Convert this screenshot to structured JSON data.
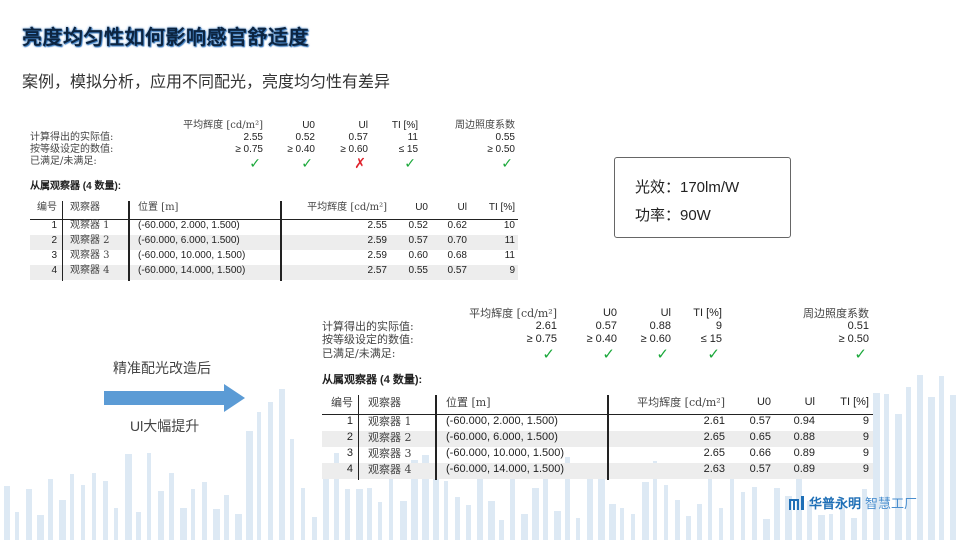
{
  "header": {
    "title": "亮度均匀性如何影响感官舒适度",
    "subtitle": "案例，模拟分析，应用不同配光，亮度均匀性有差异"
  },
  "colors": {
    "title": "#0c2440",
    "pass": "#1aa83a",
    "fail": "#e0202a",
    "arrow": "#5b9bd5",
    "background_bars": "#dde9f4"
  },
  "reports": [
    {
      "summary": {
        "headers": [
          "平均辉度 [cd/m²]",
          "U0",
          "Ul",
          "TI [%]",
          "周边照度系数"
        ],
        "rows": [
          {
            "label": "计算得出的实际值:",
            "values": [
              "2.55",
              "0.52",
              "0.57",
              "11",
              "0.55"
            ]
          },
          {
            "label": "按等级设定的数值:",
            "values": [
              "≥ 0.75",
              "≥ 0.40",
              "≥ 0.60",
              "≤ 15",
              "≥ 0.50"
            ]
          }
        ],
        "status_label": "已满足/未满足:",
        "status": [
          "pass",
          "pass",
          "fail",
          "pass",
          "pass"
        ]
      },
      "observers_title": "从属观察器 (4 数量):",
      "table": {
        "headers": [
          "编号",
          "观察器",
          "位置 [m]",
          "平均辉度 [cd/m²]",
          "U0",
          "Ul",
          "TI [%]"
        ],
        "rows": [
          [
            "1",
            "观察器 1",
            "(-60.000, 2.000, 1.500)",
            "2.55",
            "0.52",
            "0.62",
            "10"
          ],
          [
            "2",
            "观察器 2",
            "(-60.000, 6.000, 1.500)",
            "2.59",
            "0.57",
            "0.70",
            "11"
          ],
          [
            "3",
            "观察器 3",
            "(-60.000, 10.000, 1.500)",
            "2.59",
            "0.60",
            "0.68",
            "11"
          ],
          [
            "4",
            "观察器 4",
            "(-60.000, 14.000, 1.500)",
            "2.57",
            "0.55",
            "0.57",
            "9"
          ]
        ]
      }
    },
    {
      "summary": {
        "headers": [
          "平均辉度 [cd/m²]",
          "U0",
          "Ul",
          "TI [%]",
          "周边照度系数"
        ],
        "rows": [
          {
            "label": "计算得出的实际值:",
            "values": [
              "2.61",
              "0.57",
              "0.88",
              "9",
              "0.51"
            ]
          },
          {
            "label": "按等级设定的数值:",
            "values": [
              "≥ 0.75",
              "≥ 0.40",
              "≥ 0.60",
              "≤ 15",
              "≥ 0.50"
            ]
          }
        ],
        "status_label": "已满足/未满足:",
        "status": [
          "pass",
          "pass",
          "pass",
          "pass",
          "pass"
        ]
      },
      "observers_title": "从属观察器 (4 数量):",
      "table": {
        "headers": [
          "编号",
          "观察器",
          "位置 [m]",
          "平均辉度 [cd/m²]",
          "U0",
          "Ul",
          "TI [%]"
        ],
        "rows": [
          [
            "1",
            "观察器 1",
            "(-60.000, 2.000, 1.500)",
            "2.61",
            "0.57",
            "0.94",
            "9"
          ],
          [
            "2",
            "观察器 2",
            "(-60.000, 6.000, 1.500)",
            "2.65",
            "0.65",
            "0.88",
            "9"
          ],
          [
            "3",
            "观察器 3",
            "(-60.000, 10.000, 1.500)",
            "2.65",
            "0.66",
            "0.89",
            "9"
          ],
          [
            "4",
            "观察器 4",
            "(-60.000, 14.000, 1.500)",
            "2.63",
            "0.57",
            "0.89",
            "9"
          ]
        ]
      }
    }
  ],
  "info_box": {
    "efficacy": "光效：170lm/W",
    "power": "功率：90W"
  },
  "annotation": {
    "above_arrow": "精准配光改造后",
    "below_arrow": "Ul大幅提升",
    "arrow_icon": "right-arrow"
  },
  "logo": {
    "mark": "logo-bars-icon",
    "brand": "华普永明",
    "suffix": "智慧工厂"
  },
  "icons": {
    "pass": "check-icon",
    "fail": "cross-icon"
  }
}
